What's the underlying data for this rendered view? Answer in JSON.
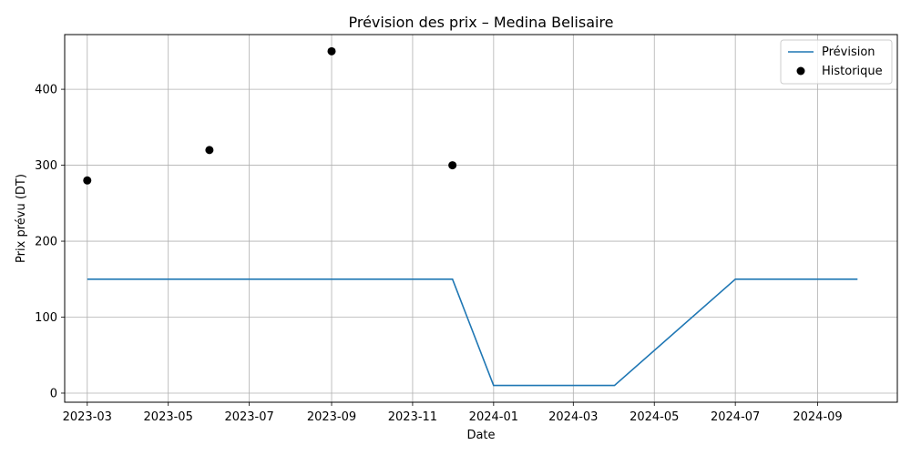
{
  "chart_data": {
    "type": "line",
    "title": "Prévision des prix – Medina Belisaire",
    "xlabel": "Date",
    "ylabel": "Prix prévu (DT)",
    "x_type": "date",
    "xlim": [
      "2023-02-12",
      "2024-10-31"
    ],
    "ylim": [
      -12,
      472
    ],
    "grid": true,
    "legend_position": "top-right",
    "x_ticks": [
      "2023-03",
      "2023-05",
      "2023-07",
      "2023-09",
      "2023-11",
      "2024-01",
      "2024-03",
      "2024-05",
      "2024-07",
      "2024-09"
    ],
    "y_ticks": [
      0,
      100,
      200,
      300,
      400
    ],
    "series": [
      {
        "name": "Prévision",
        "kind": "line",
        "color": "#1f77b4",
        "x": [
          "2023-03-01",
          "2023-12-01",
          "2024-01-01",
          "2024-04-01",
          "2024-07-01",
          "2024-10-01"
        ],
        "y": [
          150,
          150,
          10,
          10,
          150,
          150
        ]
      },
      {
        "name": "Historique",
        "kind": "scatter",
        "color": "#000000",
        "x": [
          "2023-03-01",
          "2023-06-01",
          "2023-09-01",
          "2023-12-01"
        ],
        "y": [
          280,
          320,
          450,
          300
        ]
      }
    ]
  }
}
